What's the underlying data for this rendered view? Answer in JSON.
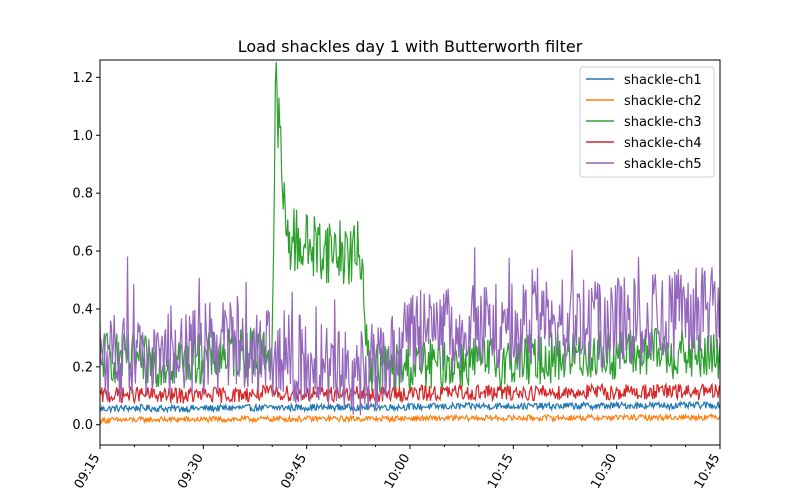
{
  "chart_data": {
    "type": "line",
    "title": "Load shackles day 1 with Butterworth filter",
    "xlabel": "",
    "ylabel": "",
    "xlim": [
      "09:15",
      "10:45"
    ],
    "ylim": [
      -0.07,
      1.26
    ],
    "x_ticks": [
      "09:15",
      "09:30",
      "09:45",
      "10:00",
      "10:15",
      "10:30",
      "10:45"
    ],
    "y_ticks": [
      "0.0",
      "0.2",
      "0.4",
      "0.6",
      "0.8",
      "1.0",
      "1.2"
    ],
    "legend_position": "top-right",
    "grid": false,
    "series": [
      {
        "name": "shackle-ch1",
        "color": "#1f77b4",
        "x": [
          "09:15",
          "09:20",
          "09:25",
          "09:30",
          "09:35",
          "09:40",
          "09:45",
          "09:50",
          "09:55",
          "10:00",
          "10:05",
          "10:10",
          "10:15",
          "10:20",
          "10:25",
          "10:30",
          "10:35",
          "10:40",
          "10:45"
        ],
        "y": [
          0.055,
          0.058,
          0.056,
          0.057,
          0.058,
          0.059,
          0.06,
          0.06,
          0.061,
          0.062,
          0.063,
          0.064,
          0.065,
          0.064,
          0.065,
          0.066,
          0.067,
          0.066,
          0.068
        ]
      },
      {
        "name": "shackle-ch2",
        "color": "#ff7f0e",
        "x": [
          "09:15",
          "09:20",
          "09:25",
          "09:30",
          "09:35",
          "09:40",
          "09:45",
          "09:50",
          "09:55",
          "10:00",
          "10:05",
          "10:10",
          "10:15",
          "10:20",
          "10:25",
          "10:30",
          "10:35",
          "10:40",
          "10:45"
        ],
        "y": [
          0.015,
          0.017,
          0.018,
          0.018,
          0.019,
          0.02,
          0.02,
          0.021,
          0.021,
          0.022,
          0.022,
          0.023,
          0.023,
          0.024,
          0.024,
          0.025,
          0.025,
          0.026,
          0.027
        ]
      },
      {
        "name": "shackle-ch3",
        "color": "#2ca02c",
        "x": [
          "09:15",
          "09:20",
          "09:25",
          "09:30",
          "09:35",
          "09:38",
          "09:40",
          "09:40.5",
          "09:42",
          "09:45",
          "09:50",
          "09:53",
          "09:54",
          "10:00",
          "10:05",
          "10:10",
          "10:15",
          "10:20",
          "10:25",
          "10:30",
          "10:35",
          "10:40",
          "10:45"
        ],
        "y": [
          0.24,
          0.22,
          0.22,
          0.23,
          0.25,
          0.25,
          0.26,
          1.2,
          0.65,
          0.62,
          0.6,
          0.58,
          0.2,
          0.2,
          0.21,
          0.22,
          0.22,
          0.23,
          0.24,
          0.24,
          0.25,
          0.24,
          0.23
        ]
      },
      {
        "name": "shackle-ch4",
        "color": "#d62728",
        "x": [
          "09:15",
          "09:20",
          "09:25",
          "09:30",
          "09:35",
          "09:40",
          "09:45",
          "09:50",
          "09:55",
          "10:00",
          "10:05",
          "10:10",
          "10:15",
          "10:20",
          "10:25",
          "10:30",
          "10:35",
          "10:40",
          "10:45"
        ],
        "y": [
          0.1,
          0.105,
          0.1,
          0.102,
          0.104,
          0.11,
          0.108,
          0.106,
          0.105,
          0.108,
          0.11,
          0.112,
          0.11,
          0.112,
          0.113,
          0.112,
          0.114,
          0.113,
          0.112
        ]
      },
      {
        "name": "shackle-ch5",
        "color": "#9467bd",
        "x": [
          "09:15",
          "09:20",
          "09:25",
          "09:30",
          "09:35",
          "09:40",
          "09:45",
          "09:50",
          "09:55",
          "10:00",
          "10:05",
          "10:10",
          "10:15",
          "10:20",
          "10:25",
          "10:30",
          "10:35",
          "10:40",
          "10:45"
        ],
        "y": [
          0.24,
          0.23,
          0.24,
          0.26,
          0.29,
          0.25,
          0.22,
          0.18,
          0.2,
          0.3,
          0.32,
          0.34,
          0.33,
          0.35,
          0.36,
          0.35,
          0.36,
          0.38,
          0.4
        ]
      }
    ]
  }
}
